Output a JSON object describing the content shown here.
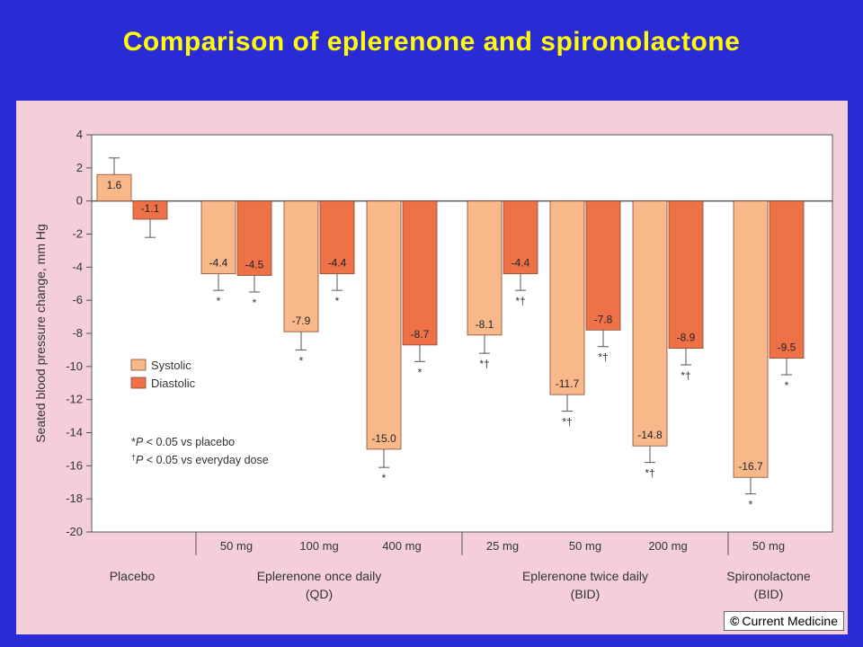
{
  "slide": {
    "title": "Comparison of eplerenone and spironolactone",
    "credit_symbol": "©",
    "credit_text": "Current Medicine"
  },
  "chart_data": {
    "type": "bar",
    "ylabel": "Seated blood pressure change, mm Hg",
    "ylim": [
      -20,
      4
    ],
    "yticks": [
      4,
      2,
      0,
      -2,
      -4,
      -6,
      -8,
      -10,
      -12,
      -14,
      -16,
      -18,
      -20
    ],
    "series_names": [
      "Systolic",
      "Diastolic"
    ],
    "colors": {
      "Systolic": "#f9b88a",
      "Diastolic": "#ee7148"
    },
    "categories": [
      {
        "dose": "",
        "group": "Placebo",
        "systolic": 1.6,
        "diastolic": -1.1,
        "systolic_label": "1.6",
        "diastolic_label": "-1.1",
        "systolic_err": 1.0,
        "diastolic_err": 1.1,
        "systolic_mark": "",
        "diastolic_mark": ""
      },
      {
        "dose": "50 mg",
        "group": "Eplerenone once daily (QD)",
        "systolic": -4.4,
        "diastolic": -4.5,
        "systolic_label": "-4.4",
        "diastolic_label": "-4.5",
        "systolic_err": 1.0,
        "diastolic_err": 1.0,
        "systolic_mark": "*",
        "diastolic_mark": "*"
      },
      {
        "dose": "100 mg",
        "group": "Eplerenone once daily (QD)",
        "systolic": -7.9,
        "diastolic": -4.4,
        "systolic_label": "-7.9",
        "diastolic_label": "-4.4",
        "systolic_err": 1.1,
        "diastolic_err": 1.0,
        "systolic_mark": "*",
        "diastolic_mark": "*"
      },
      {
        "dose": "400 mg",
        "group": "Eplerenone once daily (QD)",
        "systolic": -15.0,
        "diastolic": -8.7,
        "systolic_label": "-15.0",
        "diastolic_label": "-8.7",
        "systolic_err": 1.1,
        "diastolic_err": 1.0,
        "systolic_mark": "*",
        "diastolic_mark": "*"
      },
      {
        "dose": "25 mg",
        "group": "Eplerenone twice daily (BID)",
        "systolic": -8.1,
        "diastolic": -4.4,
        "systolic_label": "-8.1",
        "diastolic_label": "-4.4",
        "systolic_err": 1.1,
        "diastolic_err": 1.0,
        "systolic_mark": "*†",
        "diastolic_mark": "*†"
      },
      {
        "dose": "50 mg",
        "group": "Eplerenone twice daily (BID)",
        "systolic": -11.7,
        "diastolic": -7.8,
        "systolic_label": "-11.7",
        "diastolic_label": "-7.8",
        "systolic_err": 1.0,
        "diastolic_err": 1.0,
        "systolic_mark": "*†",
        "diastolic_mark": "*†"
      },
      {
        "dose": "200 mg",
        "group": "Eplerenone twice daily (BID)",
        "systolic": -14.8,
        "diastolic": -8.9,
        "systolic_label": "-14.8",
        "diastolic_label": "-8.9",
        "systolic_err": 1.0,
        "diastolic_err": 1.0,
        "systolic_mark": "*†",
        "diastolic_mark": "*†"
      },
      {
        "dose": "50 mg",
        "group": "Spironolactone (BID)",
        "systolic": -16.7,
        "diastolic": -9.5,
        "systolic_label": "-16.7",
        "diastolic_label": "-9.5",
        "systolic_err": 1.0,
        "diastolic_err": 1.0,
        "systolic_mark": "*",
        "diastolic_mark": "*"
      }
    ],
    "groups": [
      {
        "lines": [
          "Placebo"
        ],
        "from": 0,
        "to": 0
      },
      {
        "lines": [
          "Eplerenone once daily",
          "(QD)"
        ],
        "from": 1,
        "to": 3
      },
      {
        "lines": [
          "Eplerenone twice daily",
          "(BID)"
        ],
        "from": 4,
        "to": 6
      },
      {
        "lines": [
          "Spironolactone",
          "(BID)"
        ],
        "from": 7,
        "to": 7
      }
    ],
    "footnotes": [
      {
        "symbol": "*",
        "italic": "P",
        "text": " < 0.05 vs placebo"
      },
      {
        "symbol": "†",
        "italic": "P",
        "text": " < 0.05 vs everyday dose"
      }
    ]
  }
}
